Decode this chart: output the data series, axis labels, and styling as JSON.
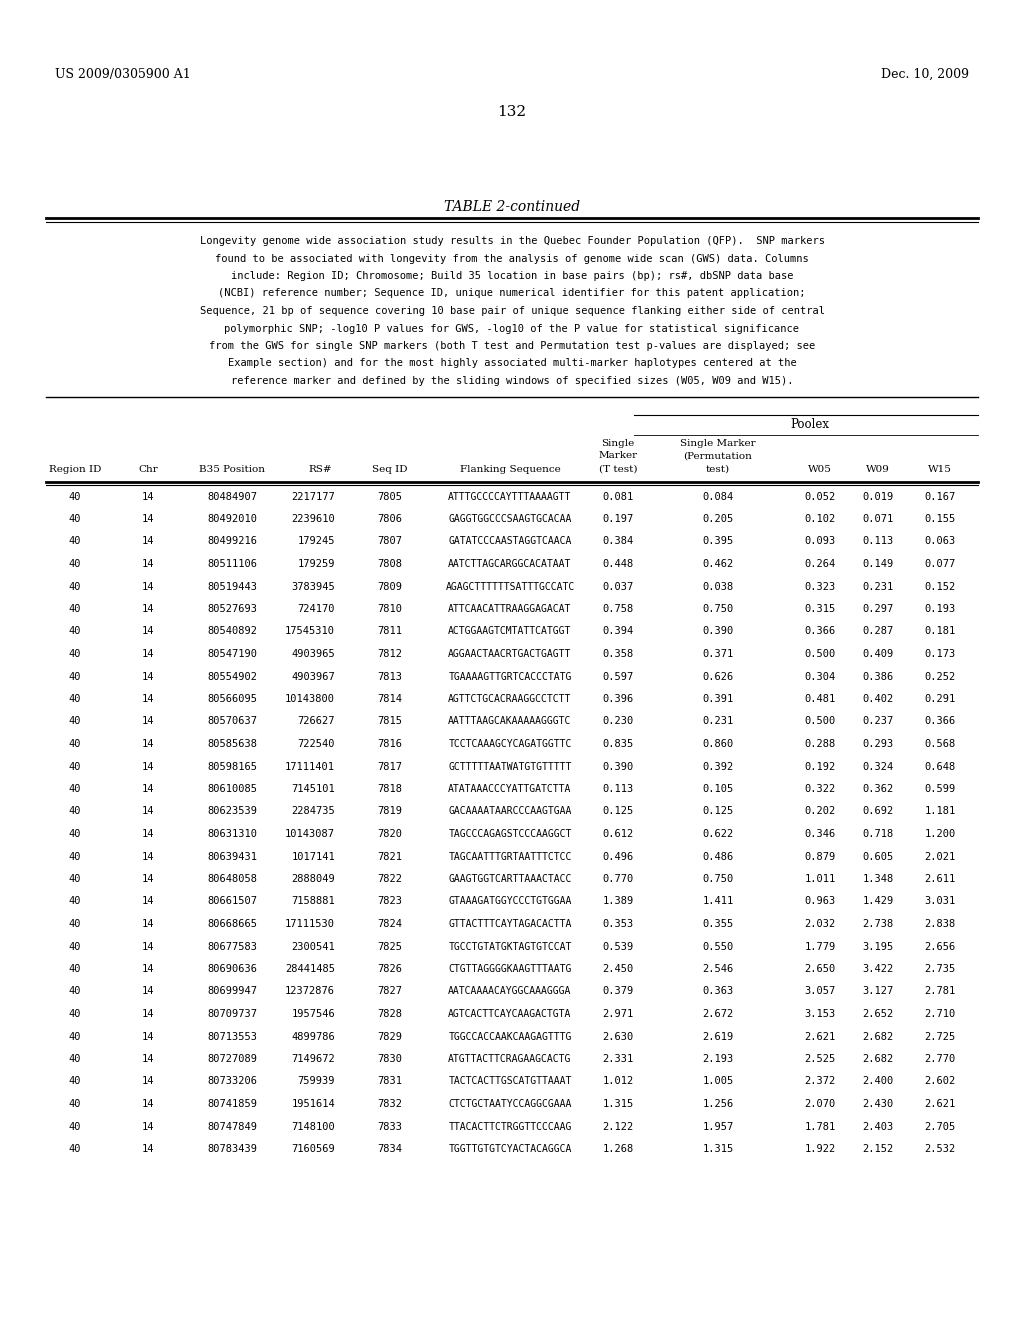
{
  "header_left": "US 2009/0305900 A1",
  "header_right": "Dec. 10, 2009",
  "page_number": "132",
  "table_title": "TABLE 2-continued",
  "poolex_label": "Poolex",
  "desc_lines": [
    "Longevity genome wide association study results in the Quebec Founder Population (QFP).  SNP markers",
    "found to be associated with longevity from the analysis of genome wide scan (GWS) data. Columns",
    "include: Region ID; Chromosome; Build 35 location in base pairs (bp); rs#, dbSNP data base",
    "(NCBI) reference number; Sequence ID, unique numerical identifier for this patent application;",
    "Sequence, 21 bp of sequence covering 10 base pair of unique sequence flanking either side of central",
    "polymorphic SNP; -log10 P values for GWS, -log10 of the P value for statistical significance",
    "from the GWS for single SNP markers (both T test and Permutation test p-values are displayed; see",
    "Example section) and for the most highly associated multi-marker haplotypes centered at the",
    "reference marker and defined by the sliding windows of specified sizes (W05, W09 and W15)."
  ],
  "rows": [
    [
      "40",
      "14",
      "80484907",
      "2217177",
      "7805",
      "ATTTGCCCCAYTTTAAAAGTT",
      "0.081",
      "0.084",
      "0.052",
      "0.019",
      "0.167"
    ],
    [
      "40",
      "14",
      "80492010",
      "2239610",
      "7806",
      "GAGGTGGCCCSAAGTGCACAA",
      "0.197",
      "0.205",
      "0.102",
      "0.071",
      "0.155"
    ],
    [
      "40",
      "14",
      "80499216",
      "179245",
      "7807",
      "GATATCCCAASTAGGTCAACA",
      "0.384",
      "0.395",
      "0.093",
      "0.113",
      "0.063"
    ],
    [
      "40",
      "14",
      "80511106",
      "179259",
      "7808",
      "AATCTTAGCARGGCACATAAT",
      "0.448",
      "0.462",
      "0.264",
      "0.149",
      "0.077"
    ],
    [
      "40",
      "14",
      "80519443",
      "3783945",
      "7809",
      "AGAGCTTTTTTSATTTGCCATC",
      "0.037",
      "0.038",
      "0.323",
      "0.231",
      "0.152"
    ],
    [
      "40",
      "14",
      "80527693",
      "724170",
      "7810",
      "ATTCAACATTRAAGGAGACAT",
      "0.758",
      "0.750",
      "0.315",
      "0.297",
      "0.193"
    ],
    [
      "40",
      "14",
      "80540892",
      "17545310",
      "7811",
      "ACTGGAAGTCMTATTCATGGT",
      "0.394",
      "0.390",
      "0.366",
      "0.287",
      "0.181"
    ],
    [
      "40",
      "14",
      "80547190",
      "4903965",
      "7812",
      "AGGAACTAACRTGACTGAGTT",
      "0.358",
      "0.371",
      "0.500",
      "0.409",
      "0.173"
    ],
    [
      "40",
      "14",
      "80554902",
      "4903967",
      "7813",
      "TGAAAAGTTGRTCACCCTATG",
      "0.597",
      "0.626",
      "0.304",
      "0.386",
      "0.252"
    ],
    [
      "40",
      "14",
      "80566095",
      "10143800",
      "7814",
      "AGTTCTGCACRAAGGCCTCTT",
      "0.396",
      "0.391",
      "0.481",
      "0.402",
      "0.291"
    ],
    [
      "40",
      "14",
      "80570637",
      "726627",
      "7815",
      "AATTTAAGCAKAAAAAGGGТС",
      "0.230",
      "0.231",
      "0.500",
      "0.237",
      "0.366"
    ],
    [
      "40",
      "14",
      "80585638",
      "722540",
      "7816",
      "TCCTCAAAGCYCAGATGGTTC",
      "0.835",
      "0.860",
      "0.288",
      "0.293",
      "0.568"
    ],
    [
      "40",
      "14",
      "80598165",
      "17111401",
      "7817",
      "GCTTTTTAATWATGTGTTTTT",
      "0.390",
      "0.392",
      "0.192",
      "0.324",
      "0.648"
    ],
    [
      "40",
      "14",
      "80610085",
      "7145101",
      "7818",
      "ATATAAACCCYATTGATCTTA",
      "0.113",
      "0.105",
      "0.322",
      "0.362",
      "0.599"
    ],
    [
      "40",
      "14",
      "80623539",
      "2284735",
      "7819",
      "GACAAAATAARCCCAAGTGAA",
      "0.125",
      "0.125",
      "0.202",
      "0.692",
      "1.181"
    ],
    [
      "40",
      "14",
      "80631310",
      "10143087",
      "7820",
      "TAGCCCAGAGSTCCCAAGGCT",
      "0.612",
      "0.622",
      "0.346",
      "0.718",
      "1.200"
    ],
    [
      "40",
      "14",
      "80639431",
      "1017141",
      "7821",
      "TAGCAATTTGRTAATTTCTCC",
      "0.496",
      "0.486",
      "0.879",
      "0.605",
      "2.021"
    ],
    [
      "40",
      "14",
      "80648058",
      "2888049",
      "7822",
      "GAAGTGGTCARTTAAACTACC",
      "0.770",
      "0.750",
      "1.011",
      "1.348",
      "2.611"
    ],
    [
      "40",
      "14",
      "80661507",
      "7158881",
      "7823",
      "GTAAAGATGGYCСCTGTGGAA",
      "1.389",
      "1.411",
      "0.963",
      "1.429",
      "3.031"
    ],
    [
      "40",
      "14",
      "80668665",
      "17111530",
      "7824",
      "GTTACTTTCAYTAGACACTTA",
      "0.353",
      "0.355",
      "2.032",
      "2.738",
      "2.838"
    ],
    [
      "40",
      "14",
      "80677583",
      "2300541",
      "7825",
      "TGCCTGTATGKTAGTGTCCAT",
      "0.539",
      "0.550",
      "1.779",
      "3.195",
      "2.656"
    ],
    [
      "40",
      "14",
      "80690636",
      "28441485",
      "7826",
      "CTGTTAGGGGKAAGTTTAATG",
      "2.450",
      "2.546",
      "2.650",
      "3.422",
      "2.735"
    ],
    [
      "40",
      "14",
      "80699947",
      "12372876",
      "7827",
      "AATCAAAACAYGGCAAAGGGA",
      "0.379",
      "0.363",
      "3.057",
      "3.127",
      "2.781"
    ],
    [
      "40",
      "14",
      "80709737",
      "1957546",
      "7828",
      "AGTCACTTCAYCAAGACTGTA",
      "2.971",
      "2.672",
      "3.153",
      "2.652",
      "2.710"
    ],
    [
      "40",
      "14",
      "80713553",
      "4899786",
      "7829",
      "TGGCCACCAAKCAAGAGTTTG",
      "2.630",
      "2.619",
      "2.621",
      "2.682",
      "2.725"
    ],
    [
      "40",
      "14",
      "80727089",
      "7149672",
      "7830",
      "ATGTTACTTCRAGAAGCACTG",
      "2.331",
      "2.193",
      "2.525",
      "2.682",
      "2.770"
    ],
    [
      "40",
      "14",
      "80733206",
      "759939",
      "7831",
      "TACTCACTTGSCATGTTAAAT",
      "1.012",
      "1.005",
      "2.372",
      "2.400",
      "2.602"
    ],
    [
      "40",
      "14",
      "80741859",
      "1951614",
      "7832",
      "CTCTGCTAATYCCAGGCGAAA",
      "1.315",
      "1.256",
      "2.070",
      "2.430",
      "2.621"
    ],
    [
      "40",
      "14",
      "80747849",
      "7148100",
      "7833",
      "TTACACTTCTRGGTTCCCAAG",
      "2.122",
      "1.957",
      "1.781",
      "2.403",
      "2.705"
    ],
    [
      "40",
      "14",
      "80783439",
      "7160569",
      "7834",
      "TGGTTGTGTCYACTACAGGCA",
      "1.268",
      "1.315",
      "1.922",
      "2.152",
      "2.532"
    ]
  ]
}
